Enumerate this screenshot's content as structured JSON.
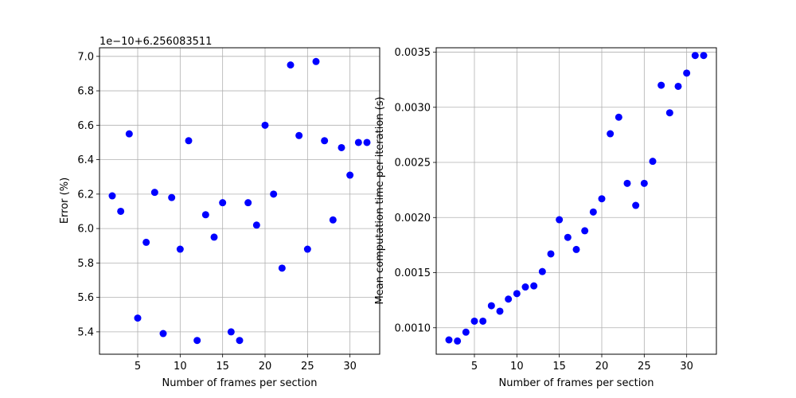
{
  "chart_data": [
    {
      "type": "scatter",
      "xlabel": "Number of frames per section",
      "ylabel": "Error (%)",
      "y_offset_label": "1e−10+6.256083511",
      "xlim": [
        0.5,
        33.5
      ],
      "ylim": [
        5.27,
        7.05
      ],
      "xticks": [
        5,
        10,
        15,
        20,
        25,
        30
      ],
      "xtick_labels": [
        "5",
        "10",
        "15",
        "20",
        "25",
        "30"
      ],
      "yticks": [
        5.4,
        5.6,
        5.8,
        6.0,
        6.2,
        6.4,
        6.6,
        6.8,
        7.0
      ],
      "ytick_labels": [
        "5.4",
        "5.6",
        "5.8",
        "6.0",
        "6.2",
        "6.4",
        "6.6",
        "6.8",
        "7.0"
      ],
      "grid": true,
      "color": "#0000ff",
      "x": [
        2,
        3,
        4,
        5,
        6,
        7,
        8,
        9,
        10,
        11,
        12,
        13,
        14,
        15,
        16,
        17,
        18,
        19,
        20,
        21,
        22,
        23,
        24,
        25,
        26,
        27,
        28,
        29,
        30,
        31,
        32
      ],
      "y": [
        6.19,
        6.1,
        6.55,
        5.48,
        5.92,
        6.21,
        5.39,
        6.18,
        5.88,
        6.51,
        5.35,
        6.08,
        5.95,
        6.15,
        5.4,
        5.35,
        6.15,
        6.02,
        6.6,
        6.2,
        5.77,
        6.95,
        6.54,
        5.88,
        6.97,
        6.51,
        6.05,
        6.47,
        6.31,
        6.5,
        6.5
      ]
    },
    {
      "type": "scatter",
      "xlabel": "Number of frames per section",
      "ylabel": "Mean computation time per iteration (s)",
      "xlim": [
        0.5,
        33.5
      ],
      "ylim": [
        0.00076,
        0.00354
      ],
      "xticks": [
        5,
        10,
        15,
        20,
        25,
        30
      ],
      "xtick_labels": [
        "5",
        "10",
        "15",
        "20",
        "25",
        "30"
      ],
      "yticks": [
        0.001,
        0.0015,
        0.002,
        0.0025,
        0.003,
        0.0035
      ],
      "ytick_labels": [
        "0.0010",
        "0.0015",
        "0.0020",
        "0.0025",
        "0.0030",
        "0.0035"
      ],
      "grid": true,
      "color": "#0000ff",
      "x": [
        2,
        3,
        4,
        5,
        6,
        7,
        8,
        9,
        10,
        11,
        12,
        13,
        14,
        15,
        16,
        17,
        18,
        19,
        20,
        21,
        22,
        23,
        24,
        25,
        26,
        27,
        28,
        29,
        30,
        31,
        32
      ],
      "y": [
        0.00089,
        0.00088,
        0.00096,
        0.00106,
        0.00106,
        0.0012,
        0.00115,
        0.00126,
        0.00131,
        0.00137,
        0.00138,
        0.00151,
        0.00167,
        0.00198,
        0.00182,
        0.00171,
        0.00188,
        0.00205,
        0.00217,
        0.00276,
        0.00291,
        0.00231,
        0.00211,
        0.00231,
        0.00251,
        0.0032,
        0.00295,
        0.00319,
        0.00331,
        0.00347,
        0.00347
      ]
    }
  ]
}
